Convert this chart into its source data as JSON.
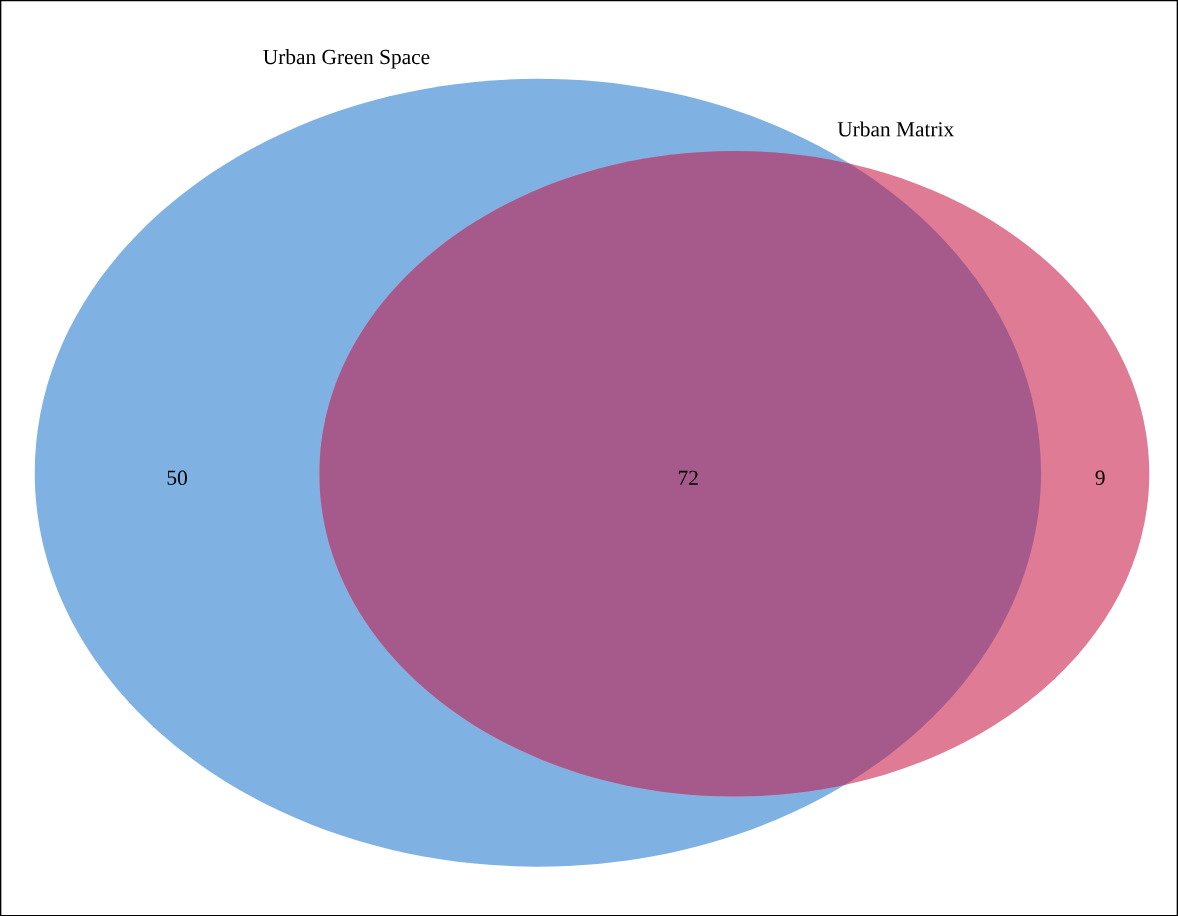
{
  "chart_data": {
    "type": "other",
    "categories": [
      null,
      null,
      null
    ],
    "values": [
      50,
      72,
      9
    ],
    "colors": [
      "#7fb2e3",
      "#a65a8c",
      "#e07b96"
    ],
    "data_labels": true,
    "annotations": [
      "Urban Green Space",
      "Urban Matrix"
    ]
  }
}
